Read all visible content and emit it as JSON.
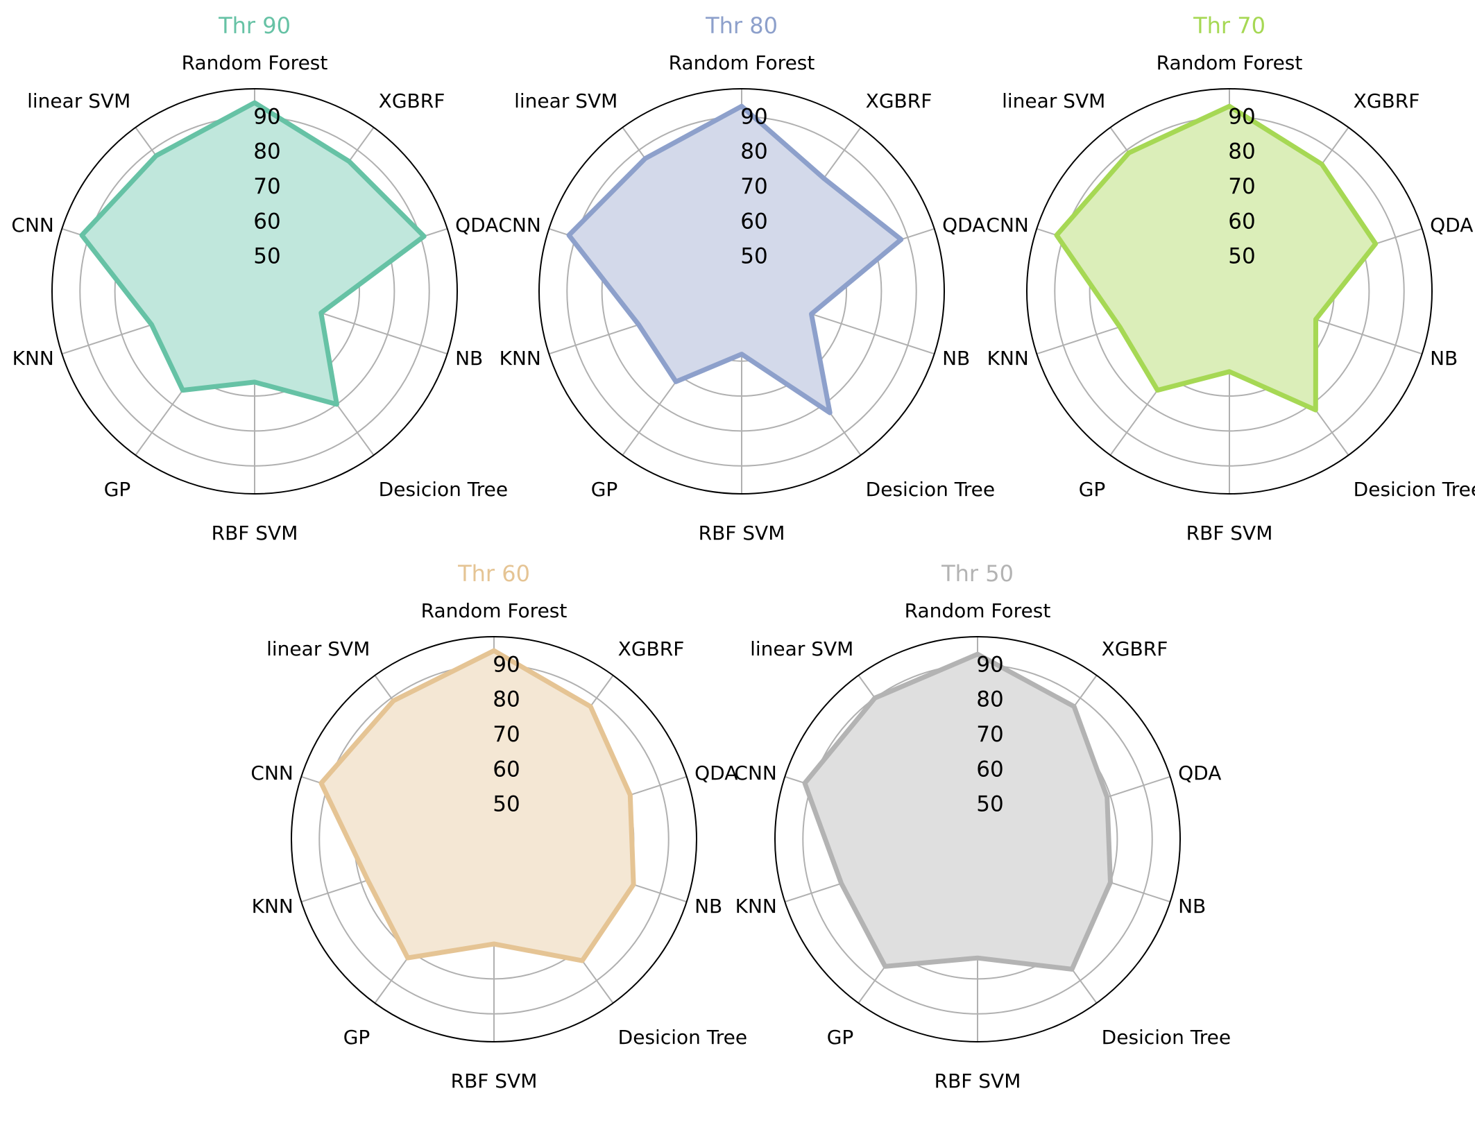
{
  "chart_data": [
    {
      "type": "radar",
      "title": "Thr 90",
      "title_color": "#66c2a5",
      "color": "#66c2a5",
      "fill_color": "#c0e7dc",
      "categories": [
        "Random Forest",
        "XGBRF",
        "QDA",
        "NB",
        "Desicion Tree",
        "RBF SVM",
        "GP",
        "KNN",
        "CNN",
        "linear SVM"
      ],
      "values": [
        94,
        86,
        91,
        60,
        80,
        66,
        75,
        71,
        92,
        88
      ],
      "rticks": [
        50,
        60,
        70,
        80,
        90
      ],
      "rlim": [
        40,
        98
      ],
      "grid": true
    },
    {
      "type": "radar",
      "title": "Thr 80",
      "title_color": "#8da0cb",
      "color": "#8da0cb",
      "fill_color": "#d3d9ea",
      "categories": [
        "Random Forest",
        "XGBRF",
        "QDA",
        "NB",
        "Desicion Tree",
        "RBF SVM",
        "GP",
        "KNN",
        "CNN",
        "linear SVM"
      ],
      "values": [
        93,
        80,
        88,
        61,
        83,
        58,
        72,
        71,
        92,
        87
      ],
      "rticks": [
        50,
        60,
        70,
        80,
        90
      ],
      "rlim": [
        40,
        98
      ],
      "grid": true
    },
    {
      "type": "radar",
      "title": "Thr 70",
      "title_color": "#a6d854",
      "color": "#a6d854",
      "fill_color": "#dbeeb9",
      "categories": [
        "Random Forest",
        "XGBRF",
        "QDA",
        "NB",
        "Desicion Tree",
        "RBF SVM",
        "GP",
        "KNN",
        "CNN",
        "linear SVM"
      ],
      "values": [
        93,
        85,
        84,
        66,
        82,
        63,
        75,
        73,
        92,
        89
      ],
      "rticks": [
        50,
        60,
        70,
        80,
        90
      ],
      "rlim": [
        40,
        98
      ],
      "grid": true
    },
    {
      "type": "radar",
      "title": "Thr 60",
      "title_color": "#e5c494",
      "color": "#e5c494",
      "fill_color": "#f4e7d4",
      "categories": [
        "Random Forest",
        "XGBRF",
        "QDA",
        "NB",
        "Desicion Tree",
        "RBF SVM",
        "GP",
        "KNN",
        "CNN",
        "linear SVM"
      ],
      "values": [
        94,
        87,
        81,
        82,
        83,
        70,
        82,
        78,
        92,
        89
      ],
      "rticks": [
        50,
        60,
        70,
        80,
        90
      ],
      "rlim": [
        40,
        98
      ],
      "grid": true
    },
    {
      "type": "radar",
      "title": "Thr 50",
      "title_color": "#b3b3b3",
      "color": "#b3b3b3",
      "fill_color": "#dfdfdf",
      "categories": [
        "Random Forest",
        "XGBRF",
        "QDA",
        "NB",
        "Desicion Tree",
        "RBF SVM",
        "GP",
        "KNN",
        "CNN",
        "linear SVM"
      ],
      "values": [
        93,
        87,
        79,
        80,
        86,
        74,
        85,
        81,
        92,
        90
      ],
      "rticks": [
        50,
        60,
        70,
        80,
        90
      ],
      "rlim": [
        40,
        98
      ],
      "grid": true
    }
  ]
}
